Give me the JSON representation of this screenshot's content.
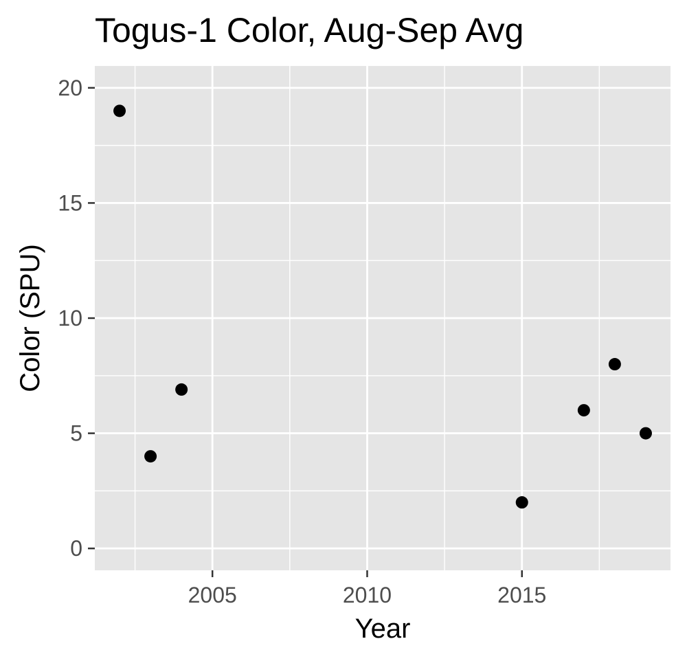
{
  "chart_data": {
    "type": "scatter",
    "title": "Togus-1 Color, Aug-Sep Avg",
    "xlabel": "Year",
    "ylabel": "Color (SPU)",
    "xlim": [
      2001.2,
      2019.8
    ],
    "ylim": [
      -0.95,
      20.95
    ],
    "x_ticks": [
      2005,
      2010,
      2015
    ],
    "x_tick_labels": [
      "2005",
      "2010",
      "2015"
    ],
    "y_ticks": [
      0,
      5,
      10,
      15,
      20
    ],
    "y_tick_labels": [
      "0",
      "5",
      "10",
      "15",
      "20"
    ],
    "grid": true,
    "legend": "none",
    "series": [
      {
        "x": [
          2002,
          2003,
          2004,
          2015,
          2017,
          2018,
          2019
        ],
        "y": [
          19,
          4,
          6.9,
          2,
          6,
          8,
          5
        ]
      }
    ],
    "colors": {
      "panel_background": "#e5e5e5",
      "grid": "#ffffff",
      "point": "#000000",
      "tick_text": "#4d4d4d",
      "axis_title": "#000000"
    }
  }
}
